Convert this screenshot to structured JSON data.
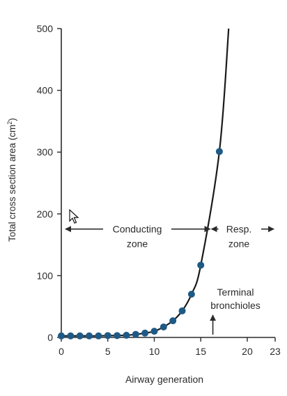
{
  "chart_data": {
    "type": "line",
    "title": "",
    "xlabel": "Airway generation",
    "ylabel_main": "Total cross section area (cm",
    "ylabel_sup": "2",
    "ylabel_close": ")",
    "xlim": [
      0,
      23
    ],
    "ylim": [
      0,
      500
    ],
    "xticks": [
      0,
      5,
      10,
      15,
      20,
      23
    ],
    "yticks": [
      0,
      100,
      200,
      300,
      400,
      500
    ],
    "grid": false,
    "legend": "none",
    "line_color": "#1a1a1a",
    "marker_color": "#1f5a86",
    "series": [
      {
        "points": [
          [
            0,
            2.5
          ],
          [
            1,
            2.5
          ],
          [
            2,
            2.5
          ],
          [
            3,
            2.5
          ],
          [
            4,
            2.5
          ],
          [
            5,
            3
          ],
          [
            6,
            3
          ],
          [
            7,
            3.5
          ],
          [
            8,
            5
          ],
          [
            9,
            7
          ],
          [
            10,
            10
          ],
          [
            11,
            17
          ],
          [
            12,
            27
          ],
          [
            13,
            43
          ],
          [
            14,
            70
          ],
          [
            15,
            117
          ],
          [
            17,
            301
          ]
        ],
        "curve_end": [
          18,
          500
        ]
      }
    ],
    "annotations": {
      "conducting_line1": "Conducting",
      "conducting_line2": "zone",
      "resp_line1": "Resp.",
      "resp_line2": "zone",
      "terminal_line1": "Terminal",
      "terminal_line2": "bronchioles",
      "zone_boundary_x": 16,
      "zone_arrow_y": 180,
      "terminal_x": 16
    }
  }
}
